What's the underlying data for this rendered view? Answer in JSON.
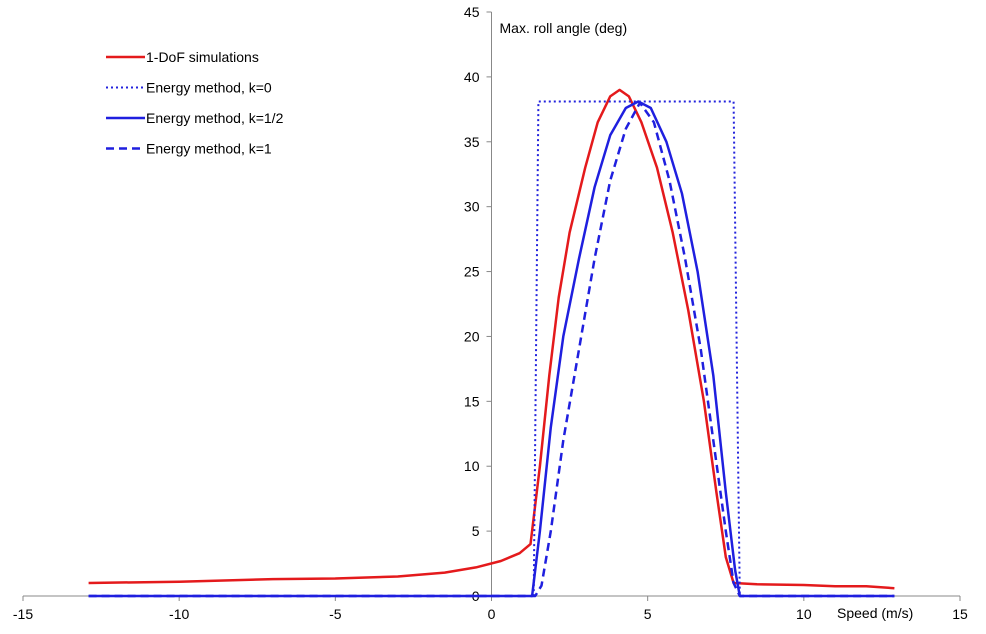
{
  "chart_data": {
    "type": "line",
    "title": "",
    "xlabel": "Speed (m/s)",
    "ylabel": "Max. roll angle (deg)",
    "xlim": [
      -15,
      15
    ],
    "ylim": [
      0,
      45
    ],
    "x_ticks": [
      -15,
      -10,
      -5,
      0,
      5,
      10,
      15
    ],
    "y_ticks": [
      0,
      5,
      10,
      15,
      20,
      25,
      30,
      35,
      40,
      45
    ],
    "grid": false,
    "legend_position": "top-left",
    "series": [
      {
        "name": "1-DoF simulations",
        "color": "#e41a1c",
        "dash": "solid",
        "points": [
          [
            -12.9,
            1.0
          ],
          [
            -10,
            1.1
          ],
          [
            -7,
            1.3
          ],
          [
            -5,
            1.35
          ],
          [
            -3,
            1.5
          ],
          [
            -1.5,
            1.8
          ],
          [
            -0.5,
            2.2
          ],
          [
            0.3,
            2.7
          ],
          [
            0.9,
            3.3
          ],
          [
            1.25,
            4.0
          ],
          [
            1.55,
            10.0
          ],
          [
            1.85,
            17.0
          ],
          [
            2.15,
            23.0
          ],
          [
            2.5,
            28.0
          ],
          [
            3.0,
            33.0
          ],
          [
            3.4,
            36.5
          ],
          [
            3.8,
            38.5
          ],
          [
            4.1,
            39.0
          ],
          [
            4.4,
            38.5
          ],
          [
            4.8,
            36.5
          ],
          [
            5.3,
            33.0
          ],
          [
            5.8,
            28.0
          ],
          [
            6.3,
            22.0
          ],
          [
            6.8,
            15.0
          ],
          [
            7.2,
            8.0
          ],
          [
            7.5,
            3.0
          ],
          [
            7.75,
            1.0
          ],
          [
            8.5,
            0.9
          ],
          [
            10,
            0.85
          ],
          [
            11,
            0.75
          ],
          [
            12,
            0.75
          ],
          [
            12.9,
            0.6
          ]
        ]
      },
      {
        "name": "Energy method, k=0",
        "color": "#2323dd",
        "dash": "dotted",
        "points": [
          [
            -12.9,
            0
          ],
          [
            1.35,
            0
          ],
          [
            1.5,
            38.1
          ],
          [
            7.75,
            38.1
          ],
          [
            7.95,
            0
          ],
          [
            12.9,
            0
          ]
        ]
      },
      {
        "name": "Energy method, k=1/2",
        "color": "#1f1fdf",
        "dash": "solid",
        "points": [
          [
            -12.9,
            0
          ],
          [
            1.3,
            0
          ],
          [
            1.55,
            5.0
          ],
          [
            1.9,
            13.0
          ],
          [
            2.3,
            20.0
          ],
          [
            2.8,
            26.0
          ],
          [
            3.3,
            31.5
          ],
          [
            3.8,
            35.5
          ],
          [
            4.3,
            37.6
          ],
          [
            4.7,
            38.1
          ],
          [
            5.1,
            37.6
          ],
          [
            5.6,
            35.0
          ],
          [
            6.1,
            31.0
          ],
          [
            6.6,
            25.0
          ],
          [
            7.1,
            17.0
          ],
          [
            7.5,
            8.0
          ],
          [
            7.8,
            2.0
          ],
          [
            7.95,
            0
          ],
          [
            12.9,
            0
          ]
        ]
      },
      {
        "name": "Energy method, k=1",
        "color": "#1f1fdf",
        "dash": "dashed",
        "points": [
          [
            -12.9,
            0
          ],
          [
            1.4,
            0
          ],
          [
            1.6,
            0.8
          ],
          [
            1.9,
            5.0
          ],
          [
            2.3,
            12.0
          ],
          [
            2.8,
            19.0
          ],
          [
            3.3,
            26.0
          ],
          [
            3.8,
            32.0
          ],
          [
            4.3,
            36.0
          ],
          [
            4.75,
            38.0
          ],
          [
            5.2,
            36.5
          ],
          [
            5.7,
            32.0
          ],
          [
            6.2,
            26.0
          ],
          [
            6.7,
            19.0
          ],
          [
            7.1,
            12.0
          ],
          [
            7.5,
            5.0
          ],
          [
            7.75,
            1.0
          ],
          [
            7.95,
            0
          ],
          [
            12.9,
            0
          ]
        ]
      }
    ]
  }
}
